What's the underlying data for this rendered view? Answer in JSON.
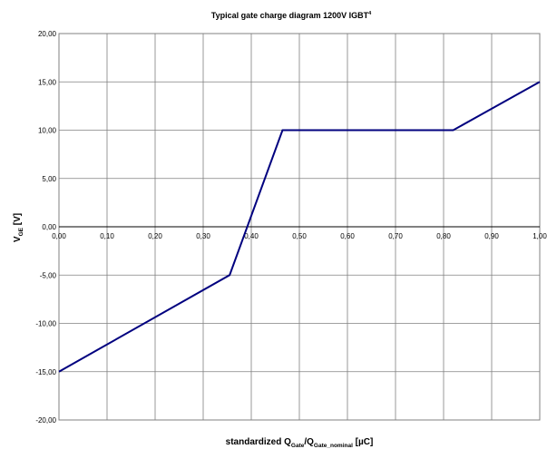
{
  "chart_data": {
    "type": "line",
    "title": "Typical gate charge diagram 1200V IGBT",
    "title_superscript": "4",
    "xlabel": {
      "main": "standardized Q",
      "sub1": "Gate",
      "mid": "/Q",
      "sub2": "Gate_nominal",
      "unit": " [µC]"
    },
    "ylabel": {
      "main": "V",
      "sub": "GE",
      "unit": " [V]"
    },
    "xlim": [
      0,
      1.0
    ],
    "ylim": [
      -20,
      20
    ],
    "xticks": [
      0.0,
      0.1,
      0.2,
      0.3,
      0.4,
      0.5,
      0.6,
      0.7,
      0.8,
      0.9,
      1.0
    ],
    "xtick_labels": [
      "0,00",
      "0,10",
      "0,20",
      "0,30",
      "0,40",
      "0,50",
      "0,60",
      "0,70",
      "0,80",
      "0,90",
      "1,00"
    ],
    "yticks": [
      20,
      15,
      10,
      5,
      0,
      -5,
      -10,
      -15,
      -20
    ],
    "ytick_labels": [
      "20,00",
      "15,00",
      "10,00",
      "5,00",
      "0,00",
      "-5,00",
      "-10,00",
      "-15,00",
      "-20,00"
    ],
    "grid": true,
    "line_color": "#00007f",
    "series": [
      {
        "x": [
          0.0,
          0.355,
          0.465,
          0.82,
          1.0
        ],
        "y": [
          -15,
          -5,
          10,
          10,
          15
        ]
      }
    ]
  }
}
